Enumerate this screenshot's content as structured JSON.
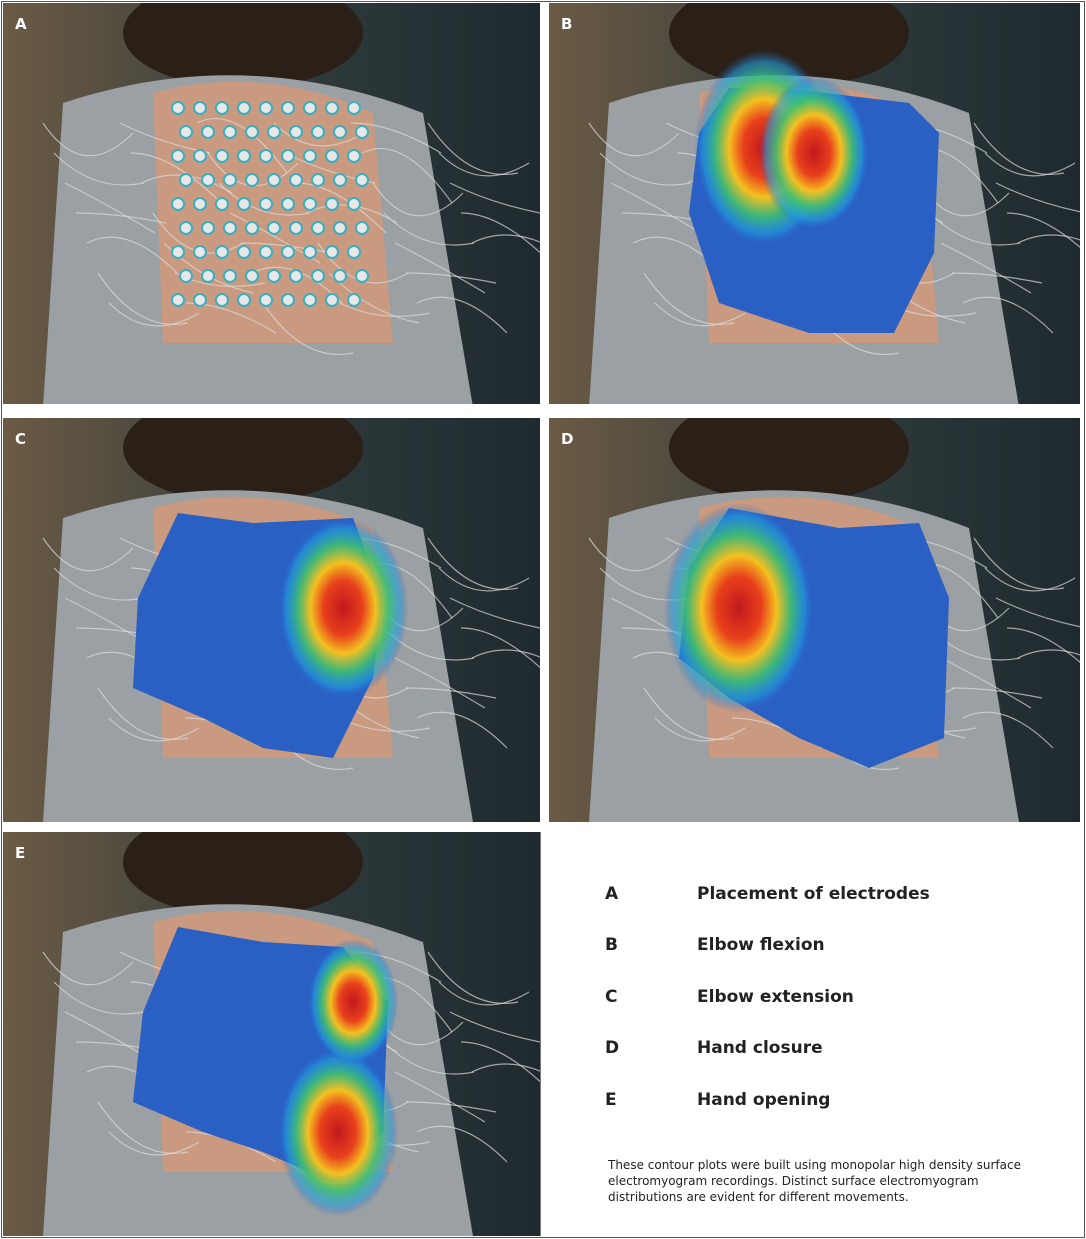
{
  "panels": [
    {
      "label": "A"
    },
    {
      "label": "B"
    },
    {
      "label": "C"
    },
    {
      "label": "D"
    },
    {
      "label": "E"
    }
  ],
  "legend": [
    {
      "letter": "A",
      "text": "Placement of electrodes"
    },
    {
      "letter": "B",
      "text": "Elbow flexion"
    },
    {
      "letter": "C",
      "text": "Elbow extension"
    },
    {
      "letter": "D",
      "text": "Hand closure"
    },
    {
      "letter": "E",
      "text": "Hand opening"
    }
  ],
  "caption": "These contour plots were built using monopolar high density surface electromyogram recordings. Distinct surface electromyogram distributions are evident for different movements."
}
